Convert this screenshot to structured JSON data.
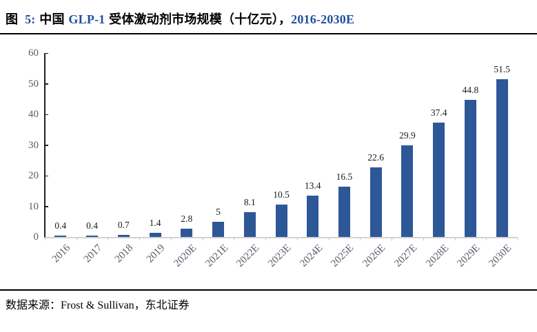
{
  "title": {
    "prefix": "图",
    "number": "5:",
    "part_cn1": "中国",
    "part_en": "GLP-1",
    "part_cn2": "受体激动剂市场规模（十亿元），",
    "part_range": "2016-2030E"
  },
  "source": {
    "text": "数据来源：Frost & Sullivan，东北证券"
  },
  "colors": {
    "bar": "#2E5797",
    "title_accent": "#1F4E9C",
    "axis_line": "#1f1f1f",
    "baseline": "#d2d2d2",
    "tick_label": "#565c6b",
    "value_label": "#1a1a1a"
  },
  "chart_data": {
    "type": "bar",
    "title": "中国GLP-1受体激动剂市场规模（十亿元），2016-2030E",
    "xlabel": "",
    "ylabel": "",
    "ylim": [
      0,
      60
    ],
    "yticks": [
      0,
      10,
      20,
      30,
      40,
      50,
      60
    ],
    "grid": false,
    "legend_position": "none",
    "bar_color": "#2E5797",
    "categories": [
      "2016",
      "2017",
      "2018",
      "2019",
      "2020E",
      "2021E",
      "2022E",
      "2023E",
      "2024E",
      "2025E",
      "2026E",
      "2027E",
      "2028E",
      "2029E",
      "2030E"
    ],
    "values": [
      0.4,
      0.4,
      0.7,
      1.4,
      2.8,
      5,
      8.1,
      10.5,
      13.4,
      16.5,
      22.6,
      29.9,
      37.4,
      44.8,
      51.5
    ],
    "value_labels": [
      "0.4",
      "0.4",
      "0.7",
      "1.4",
      "2.8",
      "5",
      "8.1",
      "10.5",
      "13.4",
      "16.5",
      "22.6",
      "29.9",
      "37.4",
      "44.8",
      "51.5"
    ]
  }
}
